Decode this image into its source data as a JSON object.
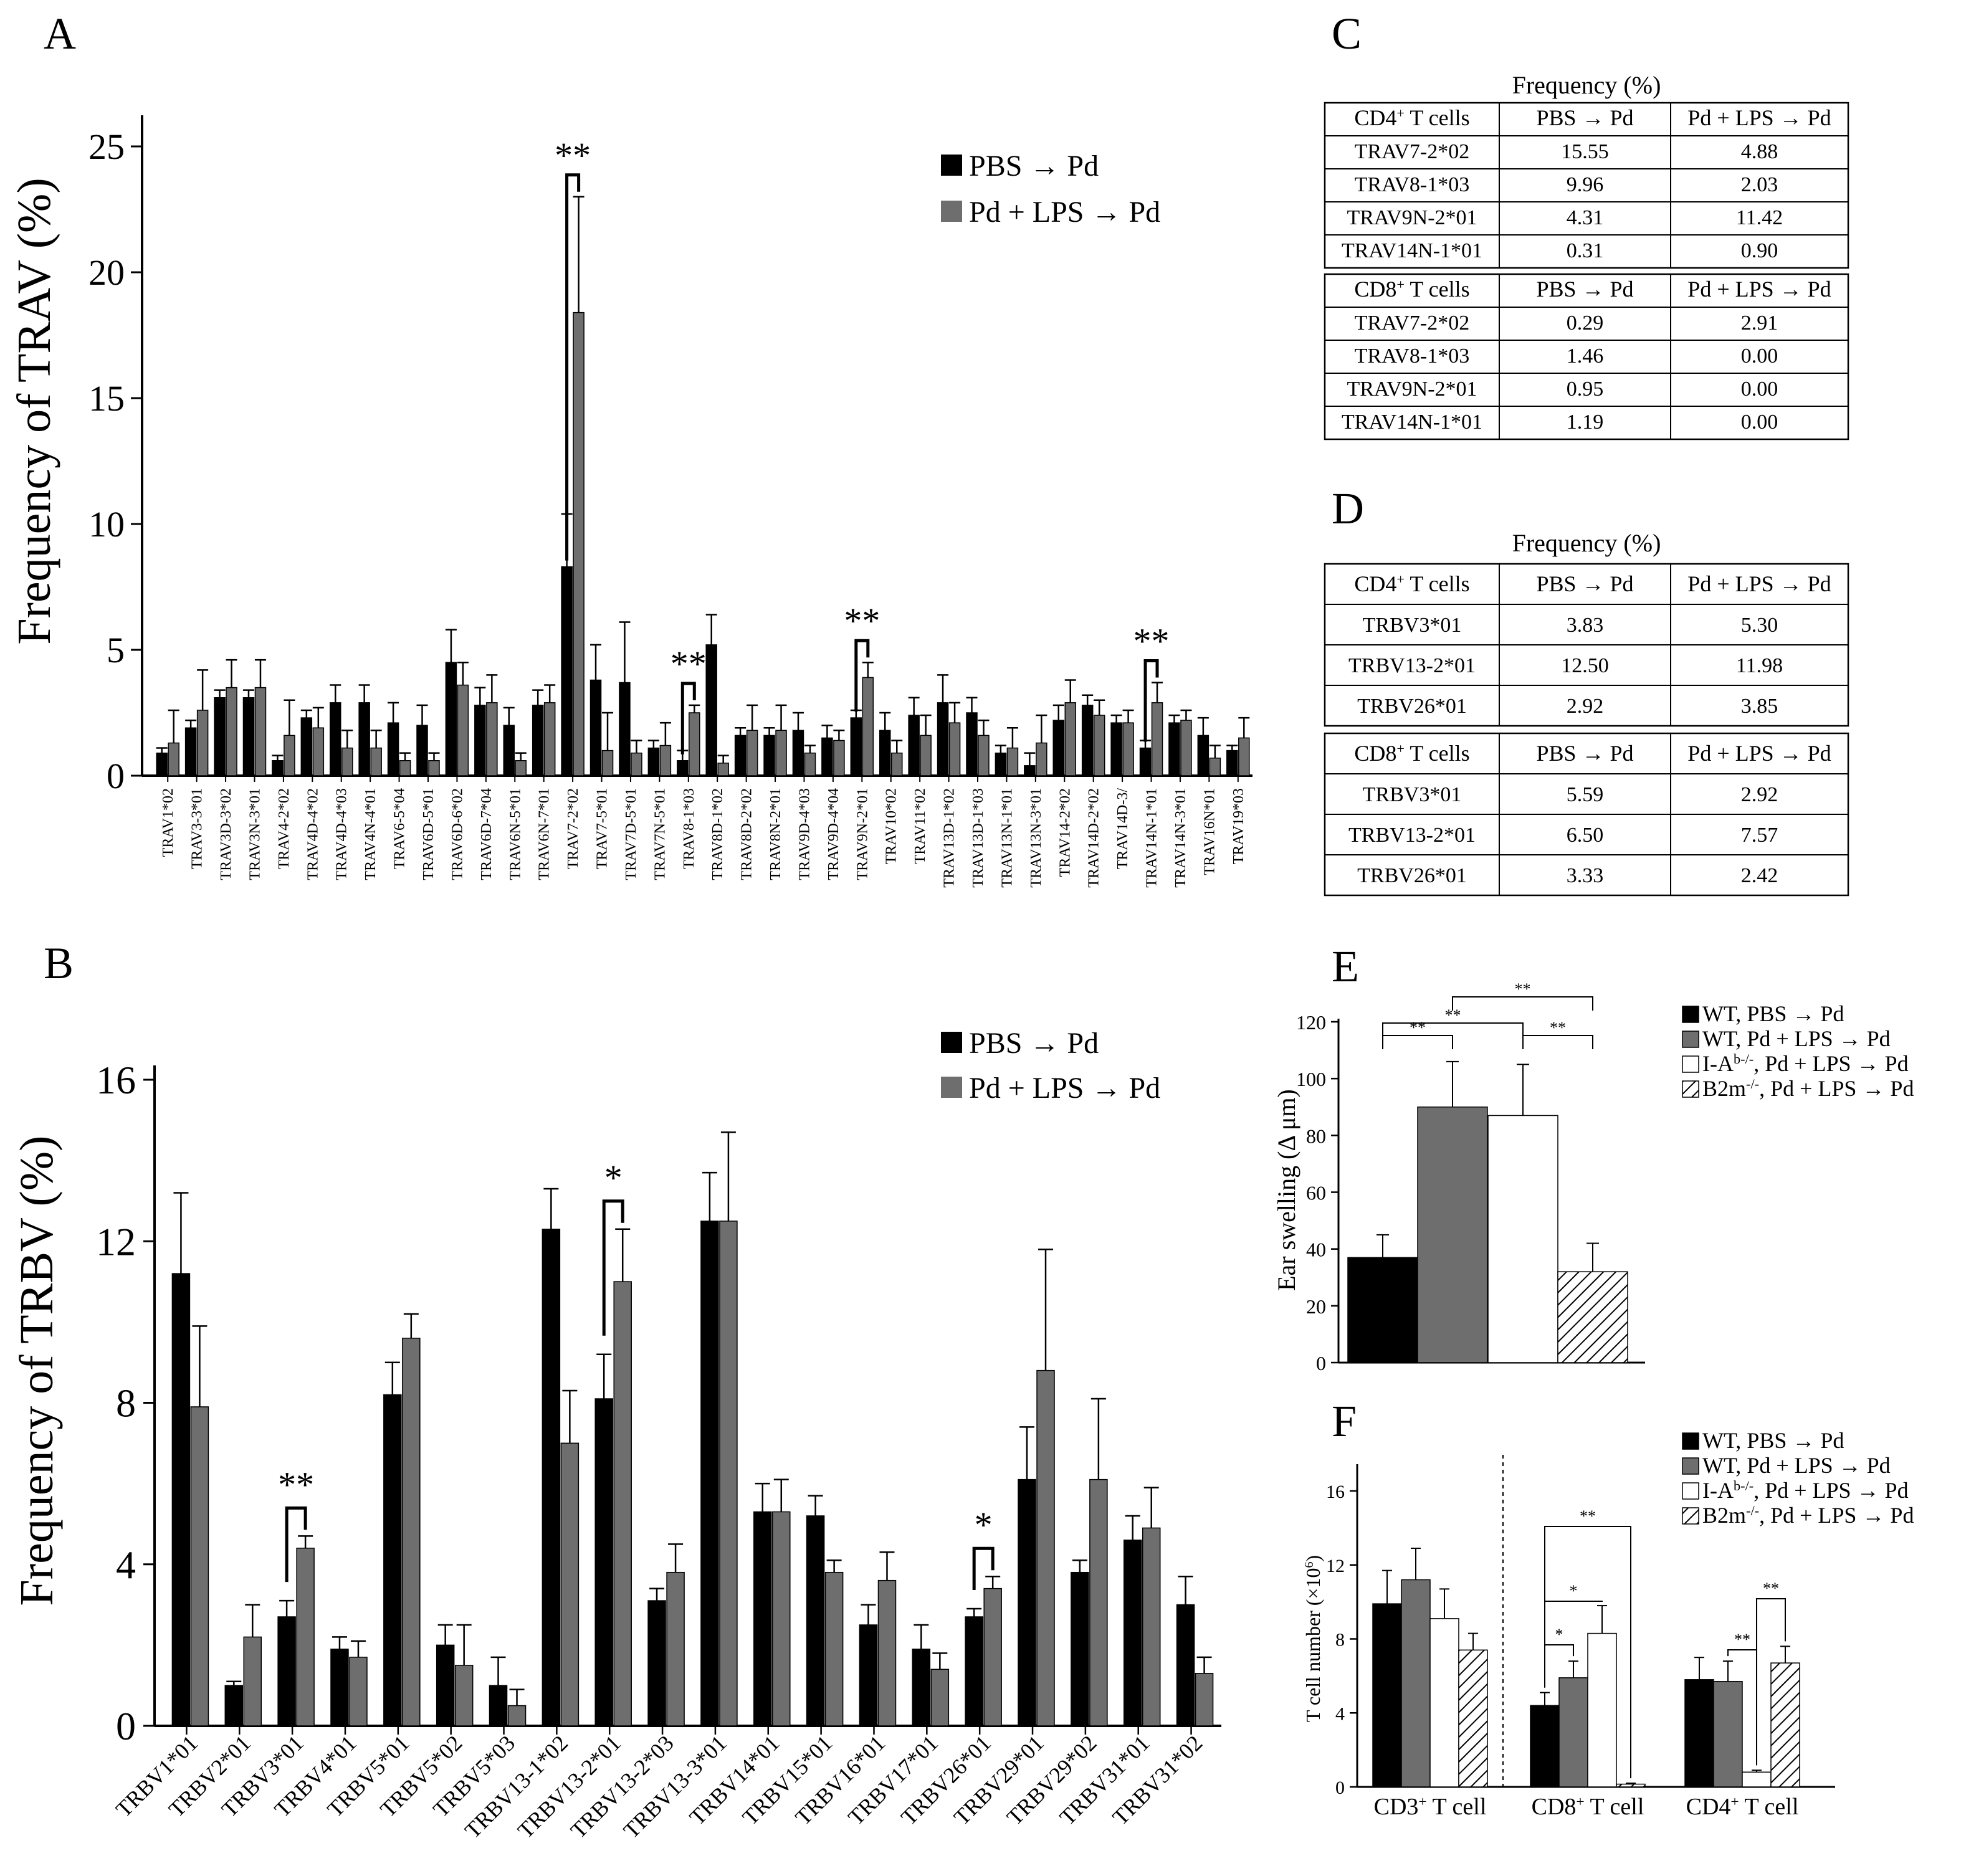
{
  "colors": {
    "black": "#000000",
    "gray": "#6e6e6e",
    "white": "#ffffff",
    "axis": "#000000"
  },
  "panels": {
    "A": {
      "letter": "A"
    },
    "B": {
      "letter": "B"
    },
    "C": {
      "letter": "C"
    },
    "D": {
      "letter": "D"
    },
    "E": {
      "letter": "E"
    },
    "F": {
      "letter": "F"
    }
  },
  "chart_data": [
    {
      "id": "A",
      "type": "bar",
      "ylabel": "Frequency of TRAV (%)",
      "ylim": [
        0,
        25
      ],
      "yticks": [
        0,
        5,
        10,
        15,
        20,
        25
      ],
      "legend": [
        "PBS → Pd",
        "Pd + LPS → Pd"
      ],
      "categories": [
        "TRAV1*02",
        "TRAV3-3*01",
        "TRAV3D-3*02",
        "TRAV3N-3*01",
        "TRAV4-2*02",
        "TRAV4D-4*02",
        "TRAV4D-4*03",
        "TRAV4N-4*01",
        "TRAV6-5*04",
        "TRAV6D-5*01",
        "TRAV6D-6*02",
        "TRAV6D-7*04",
        "TRAV6N-5*01",
        "TRAV6N-7*01",
        "TRAV7-2*02",
        "TRAV7-5*01",
        "TRAV7D-5*01",
        "TRAV7N-5*01",
        "TRAV8-1*03",
        "TRAV8D-1*02",
        "TRAV8D-2*02",
        "TRAV8N-2*01",
        "TRAV9D-4*03",
        "TRAV9D-4*04",
        "TRAV9N-2*01",
        "TRAV10*02",
        "TRAV11*02",
        "TRAV13D-1*02",
        "TRAV13D-1*03",
        "TRAV13N-1*01",
        "TRAV13N-3*01",
        "TRAV14-2*02",
        "TRAV14D-2*02",
        "TRAV14D-3/",
        "TRAV14N-1*01",
        "TRAV14N-3*01",
        "TRAV16N*01",
        "TRAV19*03"
      ],
      "series": [
        {
          "name": "PBS → Pd",
          "values": [
            0.9,
            1.9,
            3.1,
            3.1,
            0.6,
            2.3,
            2.9,
            2.9,
            2.1,
            2.0,
            4.5,
            2.8,
            2.0,
            2.8,
            8.3,
            3.8,
            3.7,
            1.1,
            0.6,
            5.2,
            1.6,
            1.6,
            1.8,
            1.5,
            2.3,
            1.8,
            2.4,
            2.9,
            2.5,
            0.9,
            0.4,
            2.2,
            2.8,
            2.1,
            1.1,
            2.1,
            1.6,
            1.0
          ],
          "errors": [
            0.2,
            0.3,
            0.3,
            0.3,
            0.2,
            0.3,
            0.7,
            0.7,
            0.8,
            0.8,
            1.3,
            0.7,
            0.7,
            0.6,
            2.1,
            1.4,
            2.4,
            0.3,
            0.4,
            1.2,
            0.3,
            0.3,
            0.7,
            0.5,
            0.3,
            0.7,
            0.7,
            1.1,
            0.6,
            0.3,
            0.5,
            0.6,
            0.4,
            0.3,
            0.3,
            0.3,
            0.7,
            0.2
          ]
        },
        {
          "name": "Pd + LPS → Pd",
          "values": [
            1.3,
            2.6,
            3.5,
            3.5,
            1.6,
            1.9,
            1.1,
            1.1,
            0.6,
            0.6,
            3.6,
            2.9,
            0.6,
            2.9,
            18.4,
            1.0,
            0.9,
            1.2,
            2.5,
            0.5,
            1.8,
            1.8,
            0.9,
            1.4,
            3.9,
            0.9,
            1.6,
            2.1,
            1.6,
            1.1,
            1.3,
            2.9,
            2.4,
            2.1,
            2.9,
            2.2,
            0.7,
            1.5
          ]
        },
        {
          "name": "Pd + LPS → Pd errors",
          "values": [
            1.3,
            1.6,
            1.1,
            1.1,
            1.4,
            0.8,
            0.7,
            0.7,
            0.3,
            0.3,
            0.9,
            1.1,
            0.3,
            0.7,
            4.6,
            1.5,
            0.5,
            0.9,
            0.3,
            0.3,
            1.0,
            1.0,
            0.3,
            0.4,
            0.6,
            0.5,
            0.8,
            0.8,
            0.6,
            0.8,
            1.1,
            0.9,
            0.6,
            0.5,
            0.8,
            0.4,
            0.5,
            0.8
          ]
        }
      ],
      "annotations": [
        {
          "pair": [
            14,
            14
          ],
          "text": "**"
        },
        {
          "pair": [
            18,
            18
          ],
          "text": "**"
        },
        {
          "pair": [
            24,
            24
          ],
          "text": "**"
        },
        {
          "pair": [
            34,
            34
          ],
          "text": "**"
        }
      ]
    },
    {
      "id": "B",
      "type": "bar",
      "ylabel": "Frequency of TRBV (%)",
      "ylim": [
        0,
        16
      ],
      "yticks": [
        0,
        4,
        8,
        12,
        16
      ],
      "legend": [
        "PBS → Pd",
        "Pd + LPS → Pd"
      ],
      "categories": [
        "TRBV1*01",
        "TRBV2*01",
        "TRBV3*01",
        "TRBV4*01",
        "TRBV5*01",
        "TRBV5*02",
        "TRBV5*03",
        "TRBV13-1*02",
        "TRBV13-2*01",
        "TRBV13-2*03",
        "TRBV13-3*01",
        "TRBV14*01",
        "TRBV15*01",
        "TRBV16*01",
        "TRBV17*01",
        "TRBV26*01",
        "TRBV29*01",
        "TRBV29*02",
        "TRBV31*01",
        "TRBV31*02"
      ],
      "series": [
        {
          "name": "PBS → Pd",
          "values": [
            11.2,
            1.0,
            2.7,
            1.9,
            8.2,
            2.0,
            1.0,
            12.3,
            8.1,
            3.1,
            12.5,
            5.3,
            5.2,
            2.5,
            1.9,
            2.7,
            6.1,
            3.8,
            4.6,
            3.0
          ],
          "errors": [
            2.0,
            0.1,
            0.4,
            0.3,
            0.8,
            0.5,
            0.7,
            1.0,
            1.1,
            0.3,
            1.2,
            0.7,
            0.5,
            0.5,
            0.6,
            0.2,
            1.3,
            0.3,
            0.6,
            0.7
          ]
        },
        {
          "name": "Pd + LPS → Pd",
          "values": [
            7.9,
            2.2,
            4.4,
            1.7,
            9.6,
            1.5,
            0.5,
            7.0,
            11.0,
            3.8,
            12.5,
            5.3,
            3.8,
            3.6,
            1.4,
            3.4,
            8.8,
            6.1,
            4.9,
            1.3
          ],
          "errors": [
            2.0,
            0.8,
            0.3,
            0.4,
            0.6,
            1.0,
            0.4,
            1.3,
            1.3,
            0.7,
            2.2,
            0.8,
            0.3,
            0.7,
            0.4,
            0.3,
            3.0,
            2.0,
            1.0,
            0.4
          ]
        }
      ],
      "annotations": [
        {
          "category": 2,
          "text": "**"
        },
        {
          "category": 8,
          "text": "*"
        },
        {
          "category": 15,
          "text": "*"
        }
      ]
    },
    {
      "id": "E",
      "type": "bar",
      "ylabel": "Ear swelling (Δ μm)",
      "ylim": [
        0,
        120
      ],
      "yticks": [
        0,
        20,
        40,
        60,
        80,
        100,
        120
      ],
      "legend": [
        "WT, PBS → Pd",
        "WT, Pd + LPS → Pd",
        "I-Ab-/-, Pd + LPS → Pd",
        "B2m-/-, Pd + LPS → Pd"
      ],
      "values": [
        37,
        90,
        87,
        32
      ],
      "errors": [
        8,
        16,
        18,
        10
      ],
      "annotations": [
        {
          "pair": [
            0,
            1
          ],
          "text": "**"
        },
        {
          "pair": [
            0,
            2
          ],
          "text": "**"
        },
        {
          "pair": [
            2,
            3
          ],
          "text": "**"
        },
        {
          "pair": [
            1,
            3
          ],
          "text": "**"
        }
      ]
    },
    {
      "id": "F",
      "type": "bar",
      "ylabel": "T cell number (×10⁶)",
      "ylim": [
        0,
        16
      ],
      "yticks": [
        0,
        4,
        8,
        12,
        16
      ],
      "legend": [
        "WT, PBS → Pd",
        "WT, Pd + LPS → Pd",
        "I-Ab-/-, Pd + LPS → Pd",
        "B2m-/-, Pd + LPS → Pd"
      ],
      "groups": [
        "CD3+ T cell",
        "CD8+ T cell",
        "CD4+ T cell"
      ],
      "series": [
        {
          "name": "WT, PBS → Pd",
          "values": [
            9.9,
            4.4,
            5.8
          ],
          "errors": [
            1.8,
            0.7,
            1.2
          ]
        },
        {
          "name": "WT, Pd + LPS → Pd",
          "values": [
            11.2,
            5.9,
            5.7
          ],
          "errors": [
            1.7,
            0.9,
            1.1
          ]
        },
        {
          "name": "I-Ab-/-, Pd + LPS → Pd",
          "values": [
            9.1,
            8.3,
            0.8
          ],
          "errors": [
            1.6,
            1.5,
            0.1
          ]
        },
        {
          "name": "B2m-/-, Pd + LPS → Pd",
          "values": [
            7.4,
            0.15,
            6.7
          ],
          "errors": [
            0.9,
            0.05,
            0.9
          ]
        }
      ],
      "annotations": [
        {
          "group": 1,
          "pair": [
            0,
            1
          ],
          "text": "*"
        },
        {
          "group": 1,
          "pair": [
            0,
            2
          ],
          "text": "*"
        },
        {
          "group": 1,
          "pair": [
            0,
            3
          ],
          "text": "**"
        },
        {
          "group": 2,
          "pair": [
            1,
            2
          ],
          "text": "**"
        },
        {
          "group": 2,
          "pair": [
            2,
            3
          ],
          "text": "**"
        }
      ]
    },
    {
      "id": "C",
      "type": "table",
      "title": "Frequency (%)",
      "blocks": [
        {
          "header": [
            "CD4+ T cells",
            "PBS → Pd",
            "Pd + LPS → Pd"
          ],
          "rows": [
            [
              "TRAV7-2*02",
              "15.55",
              "4.88"
            ],
            [
              "TRAV8-1*03",
              "9.96",
              "2.03"
            ],
            [
              "TRAV9N-2*01",
              "4.31",
              "11.42"
            ],
            [
              "TRAV14N-1*01",
              "0.31",
              "0.90"
            ]
          ]
        },
        {
          "header": [
            "CD8+ T cells",
            "PBS → Pd",
            "Pd + LPS → Pd"
          ],
          "rows": [
            [
              "TRAV7-2*02",
              "0.29",
              "2.91"
            ],
            [
              "TRAV8-1*03",
              "1.46",
              "0.00"
            ],
            [
              "TRAV9N-2*01",
              "0.95",
              "0.00"
            ],
            [
              "TRAV14N-1*01",
              "1.19",
              "0.00"
            ]
          ]
        }
      ]
    },
    {
      "id": "D",
      "type": "table",
      "title": "Frequency (%)",
      "blocks": [
        {
          "header": [
            "CD4+ T cells",
            "PBS → Pd",
            "Pd + LPS → Pd"
          ],
          "rows": [
            [
              "TRBV3*01",
              "3.83",
              "5.30"
            ],
            [
              "TRBV13-2*01",
              "12.50",
              "11.98"
            ],
            [
              "TRBV26*01",
              "2.92",
              "3.85"
            ]
          ]
        },
        {
          "header": [
            "CD8+ T cells",
            "PBS → Pd",
            "Pd + LPS → Pd"
          ],
          "rows": [
            [
              "TRBV3*01",
              "5.59",
              "2.92"
            ],
            [
              "TRBV13-2*01",
              "6.50",
              "7.57"
            ],
            [
              "TRBV26*01",
              "3.33",
              "2.42"
            ]
          ]
        }
      ]
    }
  ]
}
